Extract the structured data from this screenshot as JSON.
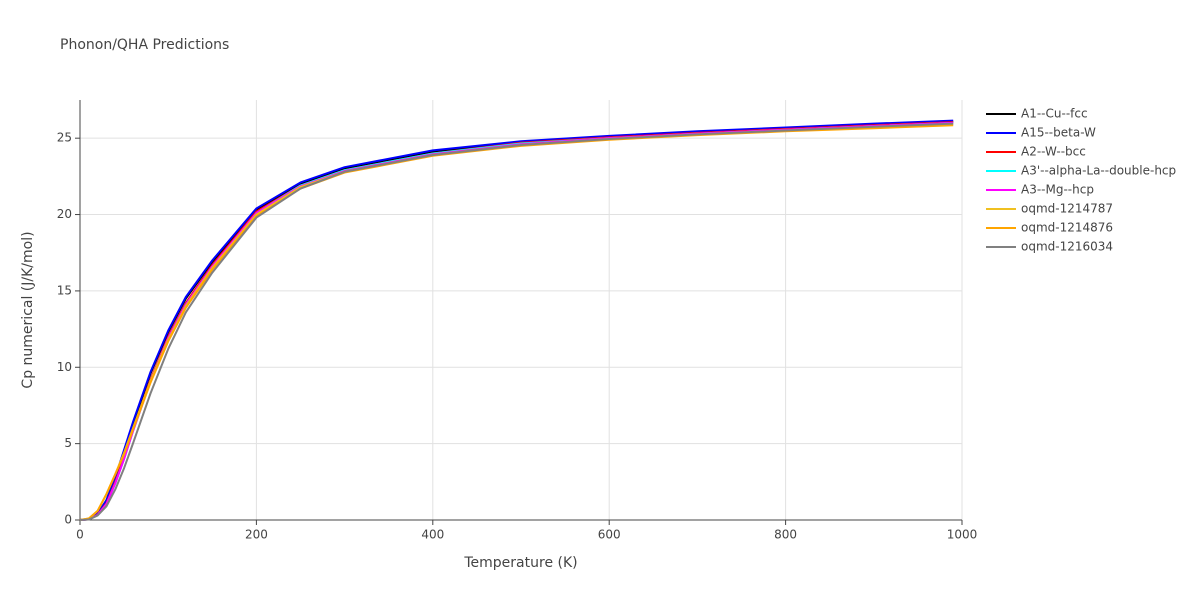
{
  "chart_data": {
    "type": "line",
    "title": "Phonon/QHA Predictions",
    "x_label": "Temperature (K)",
    "y_label": "Cp numerical (J/K/mol)",
    "x": [
      0,
      10,
      20,
      30,
      40,
      50,
      60,
      80,
      100,
      120,
      150,
      200,
      250,
      300,
      400,
      500,
      600,
      700,
      800,
      900,
      990
    ],
    "xlim": [
      0,
      1000
    ],
    "xticks": [
      0,
      200,
      400,
      600,
      800,
      1000
    ],
    "ylim": [
      0,
      27.5
    ],
    "yticks": [
      0,
      5,
      10,
      15,
      20,
      25
    ],
    "grid": true,
    "series": [
      {
        "name": "A1--Cu--fcc",
        "color": "#000000",
        "values": [
          0,
          0.05,
          0.4,
          1.3,
          2.8,
          4.5,
          6.3,
          9.6,
          12.3,
          14.5,
          16.9,
          20.3,
          22.0,
          23.0,
          24.1,
          24.75,
          25.1,
          25.4,
          25.65,
          25.9,
          26.1
        ]
      },
      {
        "name": "A15--beta-W",
        "color": "#0000ff",
        "values": [
          0,
          0.05,
          0.4,
          1.3,
          2.8,
          4.6,
          6.4,
          9.7,
          12.4,
          14.6,
          17.0,
          20.4,
          22.1,
          23.1,
          24.2,
          24.8,
          25.15,
          25.45,
          25.7,
          25.95,
          26.15
        ]
      },
      {
        "name": "A2--W--bcc",
        "color": "#ff0000",
        "values": [
          0,
          0.04,
          0.35,
          1.1,
          2.5,
          4.1,
          5.9,
          9.2,
          12.0,
          14.2,
          16.7,
          20.2,
          21.9,
          22.9,
          24.0,
          24.7,
          25.05,
          25.35,
          25.6,
          25.85,
          26.05
        ]
      },
      {
        "name": "A3'--alpha-La--double-hcp",
        "color": "#00ffff",
        "values": [
          0,
          0.04,
          0.33,
          1.05,
          2.4,
          4.0,
          5.8,
          9.1,
          11.9,
          14.1,
          16.6,
          20.1,
          21.9,
          22.9,
          24.0,
          24.65,
          25.0,
          25.3,
          25.55,
          25.8,
          26.0
        ]
      },
      {
        "name": "A3--Mg--hcp",
        "color": "#ff00ff",
        "values": [
          0,
          0.04,
          0.33,
          1.05,
          2.4,
          4.0,
          5.8,
          9.1,
          11.9,
          14.1,
          16.6,
          20.1,
          21.85,
          22.85,
          23.95,
          24.6,
          25.0,
          25.3,
          25.55,
          25.8,
          26.0
        ]
      },
      {
        "name": "oqmd-1214787",
        "color": "#f0c020",
        "values": [
          0,
          0.1,
          0.6,
          1.7,
          3.0,
          4.4,
          6.0,
          9.1,
          11.8,
          14.0,
          16.5,
          20.0,
          21.8,
          22.8,
          23.9,
          24.55,
          24.95,
          25.25,
          25.5,
          25.7,
          25.9
        ]
      },
      {
        "name": "oqmd-1214876",
        "color": "#ffa500",
        "values": [
          0,
          0.1,
          0.6,
          1.7,
          3.0,
          4.3,
          5.9,
          9.0,
          11.7,
          13.9,
          16.4,
          19.9,
          21.7,
          22.75,
          23.85,
          24.5,
          24.9,
          25.2,
          25.45,
          25.65,
          25.85
        ]
      },
      {
        "name": "oqmd-1216034",
        "color": "#808080",
        "values": [
          0,
          0.03,
          0.3,
          0.9,
          2.0,
          3.4,
          5.0,
          8.3,
          11.2,
          13.6,
          16.2,
          19.8,
          21.7,
          22.8,
          23.9,
          24.55,
          24.95,
          25.25,
          25.5,
          25.75,
          25.95
        ]
      }
    ]
  }
}
